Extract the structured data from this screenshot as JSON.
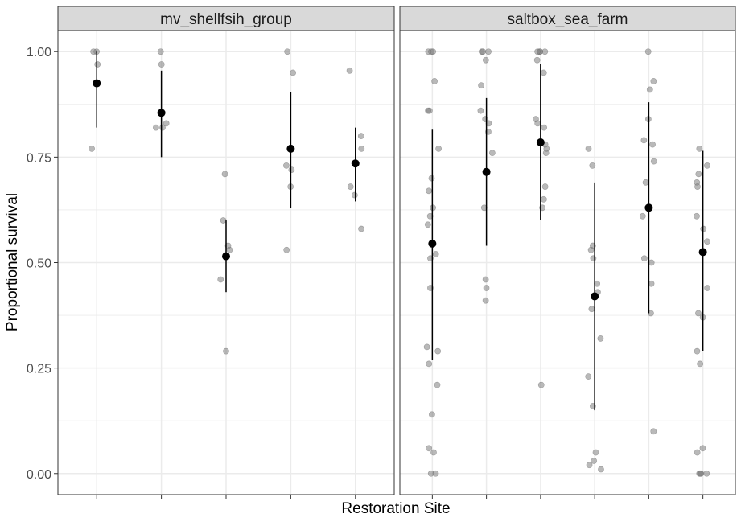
{
  "chart_data": {
    "type": "scatter",
    "xlabel": "Restoration Site",
    "ylabel": "Proportional survival",
    "ylim": [
      -0.05,
      1.05
    ],
    "yticks": [
      "0.00",
      "0.25",
      "0.50",
      "0.75",
      "1.00"
    ],
    "grid": true,
    "colors": {
      "panel_strip": "#d9d9d9",
      "raw_point": "#808080",
      "summary_point": "#000000",
      "grid": "#ebebeb",
      "border": "#333333"
    },
    "panels": [
      {
        "title": "mv_shellfsih_group",
        "sites": [
          {
            "raw": [
              1.0,
              0.97,
              0.77,
              1.0
            ],
            "mean": 0.925,
            "lower": 0.82,
            "upper": 1.0
          },
          {
            "raw": [
              1.0,
              0.97,
              0.82,
              0.83,
              0.82
            ],
            "mean": 0.855,
            "lower": 0.75,
            "upper": 0.955
          },
          {
            "raw": [
              0.71,
              0.6,
              0.53,
              0.54,
              0.46,
              0.29
            ],
            "mean": 0.515,
            "lower": 0.43,
            "upper": 0.6
          },
          {
            "raw": [
              1.0,
              0.95,
              0.73,
              0.72,
              0.68,
              0.53
            ],
            "mean": 0.77,
            "lower": 0.63,
            "upper": 0.905
          },
          {
            "raw": [
              0.955,
              0.8,
              0.77,
              0.68,
              0.66,
              0.58
            ],
            "mean": 0.735,
            "lower": 0.645,
            "upper": 0.82
          }
        ]
      },
      {
        "title": "saltbox_sea_farm",
        "sites": [
          {
            "raw": [
              1.0,
              1.0,
              1.0,
              0.93,
              0.86,
              0.86,
              0.77,
              0.7,
              0.67,
              0.63,
              0.61,
              0.59,
              0.52,
              0.51,
              0.44,
              0.3,
              0.29,
              0.26,
              0.21,
              0.14,
              0.06,
              0.05,
              0.0,
              0.0
            ],
            "mean": 0.545,
            "lower": 0.27,
            "upper": 0.815
          },
          {
            "raw": [
              1.0,
              1.0,
              1.0,
              0.98,
              0.92,
              0.86,
              0.84,
              0.83,
              0.81,
              0.76,
              0.63,
              0.46,
              0.44,
              0.41
            ],
            "mean": 0.715,
            "lower": 0.54,
            "upper": 0.89
          },
          {
            "raw": [
              1.0,
              1.0,
              1.0,
              1.0,
              0.98,
              0.95,
              0.84,
              0.83,
              0.82,
              0.78,
              0.77,
              0.76,
              0.68,
              0.65,
              0.63,
              0.21
            ],
            "mean": 0.785,
            "lower": 0.6,
            "upper": 0.97
          },
          {
            "raw": [
              0.77,
              0.73,
              0.54,
              0.53,
              0.51,
              0.45,
              0.43,
              0.39,
              0.32,
              0.23,
              0.16,
              0.05,
              0.03,
              0.02,
              0.01
            ],
            "mean": 0.42,
            "lower": 0.15,
            "upper": 0.69
          },
          {
            "raw": [
              1.0,
              0.93,
              0.91,
              0.84,
              0.79,
              0.78,
              0.74,
              0.69,
              0.61,
              0.51,
              0.5,
              0.45,
              0.38,
              0.1
            ],
            "mean": 0.63,
            "lower": 0.38,
            "upper": 0.88
          },
          {
            "raw": [
              0.77,
              0.73,
              0.71,
              0.69,
              0.68,
              0.61,
              0.58,
              0.55,
              0.44,
              0.38,
              0.37,
              0.29,
              0.26,
              0.06,
              0.05,
              0.0,
              0.0,
              0.0,
              0.0
            ],
            "mean": 0.525,
            "lower": 0.29,
            "upper": 0.765
          }
        ]
      }
    ]
  }
}
